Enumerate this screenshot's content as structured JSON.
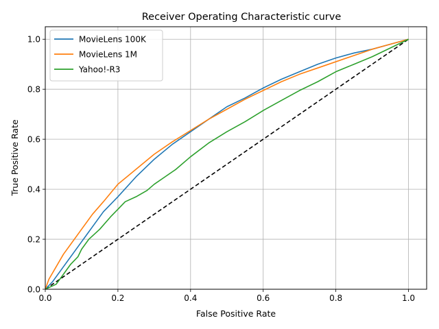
{
  "chart_data": {
    "type": "line",
    "title": "Receiver Operating Characteristic curve",
    "xlabel": "False Positive Rate",
    "ylabel": "True Positive Rate",
    "xlim": [
      0.0,
      1.05
    ],
    "ylim": [
      0.0,
      1.05
    ],
    "xticks": [
      "0.0",
      "0.2",
      "0.4",
      "0.6",
      "0.8",
      "1.0"
    ],
    "yticks": [
      "0.0",
      "0.2",
      "0.4",
      "0.6",
      "0.8",
      "1.0"
    ],
    "grid": true,
    "legend_position": "upper-left",
    "series": [
      {
        "name": "MovieLens 100K",
        "color": "#1f77b4",
        "x": [
          0.0,
          0.02,
          0.05,
          0.08,
          0.1,
          0.13,
          0.16,
          0.2,
          0.25,
          0.3,
          0.35,
          0.4,
          0.45,
          0.5,
          0.55,
          0.6,
          0.65,
          0.7,
          0.75,
          0.8,
          0.85,
          0.9,
          0.95,
          1.0
        ],
        "y": [
          0.0,
          0.03,
          0.09,
          0.15,
          0.19,
          0.25,
          0.31,
          0.37,
          0.45,
          0.52,
          0.58,
          0.63,
          0.68,
          0.73,
          0.765,
          0.805,
          0.84,
          0.87,
          0.9,
          0.925,
          0.945,
          0.96,
          0.98,
          1.0
        ]
      },
      {
        "name": "MovieLens 1M",
        "color": "#ff7f0e",
        "x": [
          0.0,
          0.01,
          0.03,
          0.05,
          0.07,
          0.1,
          0.13,
          0.16,
          0.2,
          0.25,
          0.3,
          0.35,
          0.4,
          0.45,
          0.5,
          0.55,
          0.6,
          0.65,
          0.7,
          0.75,
          0.8,
          0.85,
          0.9,
          0.95,
          1.0
        ],
        "y": [
          0.0,
          0.04,
          0.09,
          0.14,
          0.18,
          0.24,
          0.3,
          0.35,
          0.42,
          0.48,
          0.54,
          0.59,
          0.635,
          0.68,
          0.72,
          0.76,
          0.795,
          0.83,
          0.86,
          0.885,
          0.91,
          0.935,
          0.96,
          0.98,
          1.0
        ]
      },
      {
        "name": "Yahoo!-R3",
        "color": "#2ca02c",
        "x": [
          0.0,
          0.03,
          0.05,
          0.07,
          0.09,
          0.1,
          0.12,
          0.15,
          0.18,
          0.2,
          0.22,
          0.25,
          0.28,
          0.3,
          0.33,
          0.36,
          0.4,
          0.45,
          0.5,
          0.55,
          0.6,
          0.65,
          0.7,
          0.75,
          0.8,
          0.85,
          0.9,
          0.95,
          1.0
        ],
        "y": [
          0.0,
          0.02,
          0.06,
          0.1,
          0.13,
          0.16,
          0.2,
          0.24,
          0.29,
          0.32,
          0.35,
          0.37,
          0.395,
          0.42,
          0.45,
          0.48,
          0.53,
          0.585,
          0.63,
          0.67,
          0.715,
          0.755,
          0.795,
          0.83,
          0.87,
          0.9,
          0.93,
          0.965,
          1.0
        ]
      }
    ],
    "reference_line": {
      "x": [
        0.0,
        1.0
      ],
      "y": [
        0.0,
        1.0
      ],
      "color": "#000000",
      "style": "dashed"
    }
  }
}
